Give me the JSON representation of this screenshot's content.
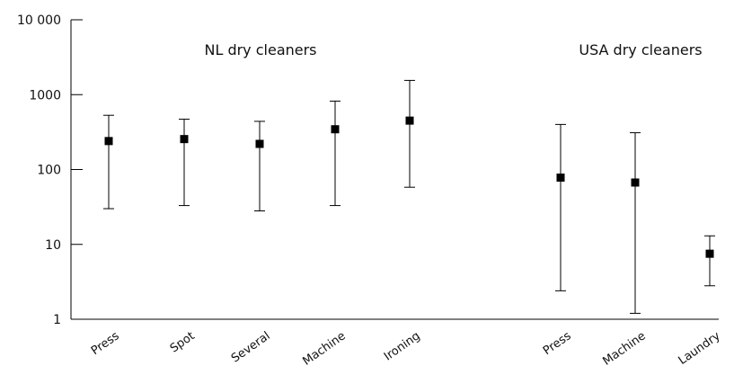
{
  "chart_data": {
    "type": "scatter",
    "title": "",
    "xlabel": "",
    "ylabel": "",
    "y_scale": "log",
    "ylim": [
      1,
      10000
    ],
    "y_ticks": [
      1,
      10,
      100,
      1000,
      10000
    ],
    "y_tick_labels": [
      "1",
      "10",
      "100",
      "1000",
      "10 000"
    ],
    "grid": false,
    "groups": [
      {
        "label": "NL dry cleaners",
        "categories": [
          "Press",
          "Spot",
          "Several",
          "Machine",
          "Ironing"
        ]
      },
      {
        "label": "USA dry cleaners",
        "categories": [
          "Press",
          "Machine",
          "Laundry"
        ]
      }
    ],
    "points": [
      {
        "group": "NL dry cleaners",
        "category": "Press",
        "value": 240,
        "lower": 30,
        "upper": 530
      },
      {
        "group": "NL dry cleaners",
        "category": "Spot",
        "value": 255,
        "lower": 33,
        "upper": 470
      },
      {
        "group": "NL dry cleaners",
        "category": "Several",
        "value": 220,
        "lower": 28,
        "upper": 440
      },
      {
        "group": "NL dry cleaners",
        "category": "Machine",
        "value": 345,
        "lower": 33,
        "upper": 820
      },
      {
        "group": "NL dry cleaners",
        "category": "Ironing",
        "value": 450,
        "lower": 58,
        "upper": 1550
      },
      {
        "group": "USA dry cleaners",
        "category": "Press",
        "value": 78,
        "lower": 2.4,
        "upper": 400
      },
      {
        "group": "USA dry cleaners",
        "category": "Machine",
        "value": 67,
        "lower": 1.2,
        "upper": 310
      },
      {
        "group": "USA dry cleaners",
        "category": "Laundry",
        "value": 7.5,
        "lower": 2.8,
        "upper": 13
      }
    ],
    "marker_color": "#000000",
    "line_color": "#000000"
  }
}
